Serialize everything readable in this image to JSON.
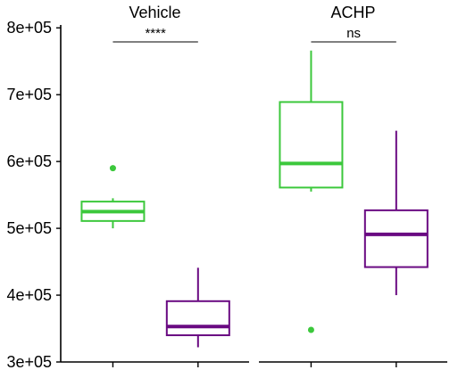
{
  "chart_data": {
    "type": "box",
    "y_tick_labels": [
      "3e+05",
      "4e+05",
      "5e+05",
      "6e+05",
      "7e+05",
      "8e+05"
    ],
    "y_ticks": [
      300000,
      400000,
      500000,
      600000,
      700000,
      800000
    ],
    "ylim": [
      300000,
      800000
    ],
    "grid": false,
    "panels": [
      {
        "title": "Vehicle",
        "significance": "****",
        "boxes": [
          {
            "color": "#3cc83c",
            "whisker_low": 500000,
            "q1": 511000,
            "median": 525000,
            "q3": 540000,
            "whisker_high": 545000,
            "outliers": [
              590000
            ]
          },
          {
            "color": "#6a0a82",
            "whisker_low": 322000,
            "q1": 340000,
            "median": 353000,
            "q3": 391000,
            "whisker_high": 441000,
            "outliers": []
          }
        ]
      },
      {
        "title": "ACHP",
        "significance": "ns",
        "boxes": [
          {
            "color": "#3cc83c",
            "whisker_low": 555000,
            "q1": 561000,
            "median": 597000,
            "q3": 689000,
            "whisker_high": 766000,
            "outliers": [
              348000
            ]
          },
          {
            "color": "#6a0a82",
            "whisker_low": 400000,
            "q1": 442000,
            "median": 491000,
            "q3": 527000,
            "whisker_high": 646000,
            "outliers": []
          }
        ]
      }
    ]
  }
}
